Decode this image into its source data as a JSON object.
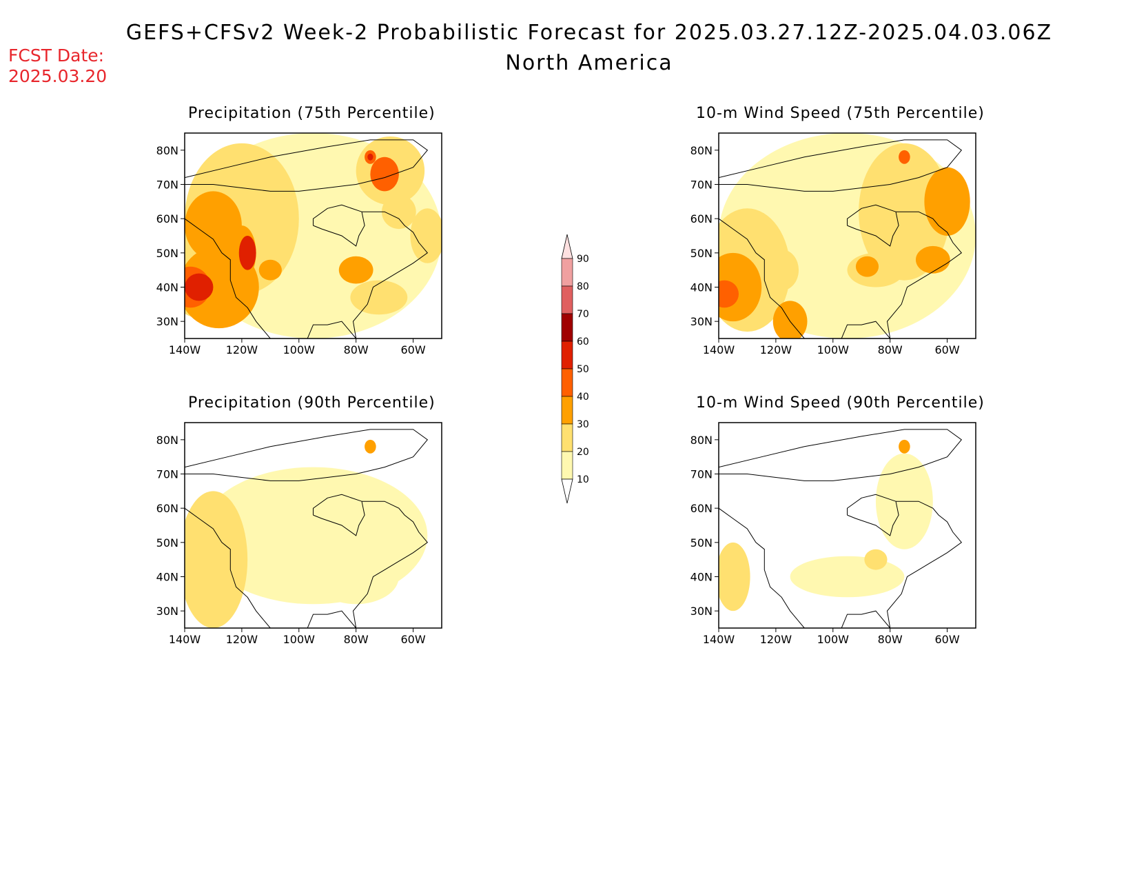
{
  "header": {
    "title": "GEFS+CFSv2 Week-2 Probabilistic Forecast for 2025.03.27.12Z-2025.04.03.06Z",
    "subtitle": "North America",
    "fcst_label": "FCST Date:",
    "fcst_date": "2025.03.20"
  },
  "panels": [
    {
      "id": "p75",
      "title": "Precipitation (75th Percentile)"
    },
    {
      "id": "w75",
      "title": "10-m Wind Speed (75th Percentile)"
    },
    {
      "id": "p90",
      "title": "Precipitation (90th Percentile)"
    },
    {
      "id": "w90",
      "title": "10-m Wind Speed (90th Percentile)"
    }
  ],
  "axes": {
    "lat_labels": [
      "80N",
      "70N",
      "60N",
      "50N",
      "40N",
      "30N"
    ],
    "lon_labels": [
      "140W",
      "120W",
      "100W",
      "80W",
      "60W"
    ],
    "lat_values": [
      80,
      70,
      60,
      50,
      40,
      30
    ],
    "lon_values": [
      -140,
      -120,
      -100,
      -80,
      -60
    ],
    "lon_range": [
      -140,
      -50
    ],
    "lat_range": [
      25,
      85
    ]
  },
  "colorbar": {
    "labels": [
      "90",
      "80",
      "70",
      "60",
      "50",
      "40",
      "30",
      "20",
      "10"
    ],
    "colors": [
      "#fde0e0",
      "#f0a0a0",
      "#e06060",
      "#a00000",
      "#e02000",
      "#ff6000",
      "#ffa000",
      "#ffe070",
      "#fff8b0"
    ]
  },
  "colors": {
    "title_red": "#e8262c",
    "bg": "#ffffff"
  }
}
